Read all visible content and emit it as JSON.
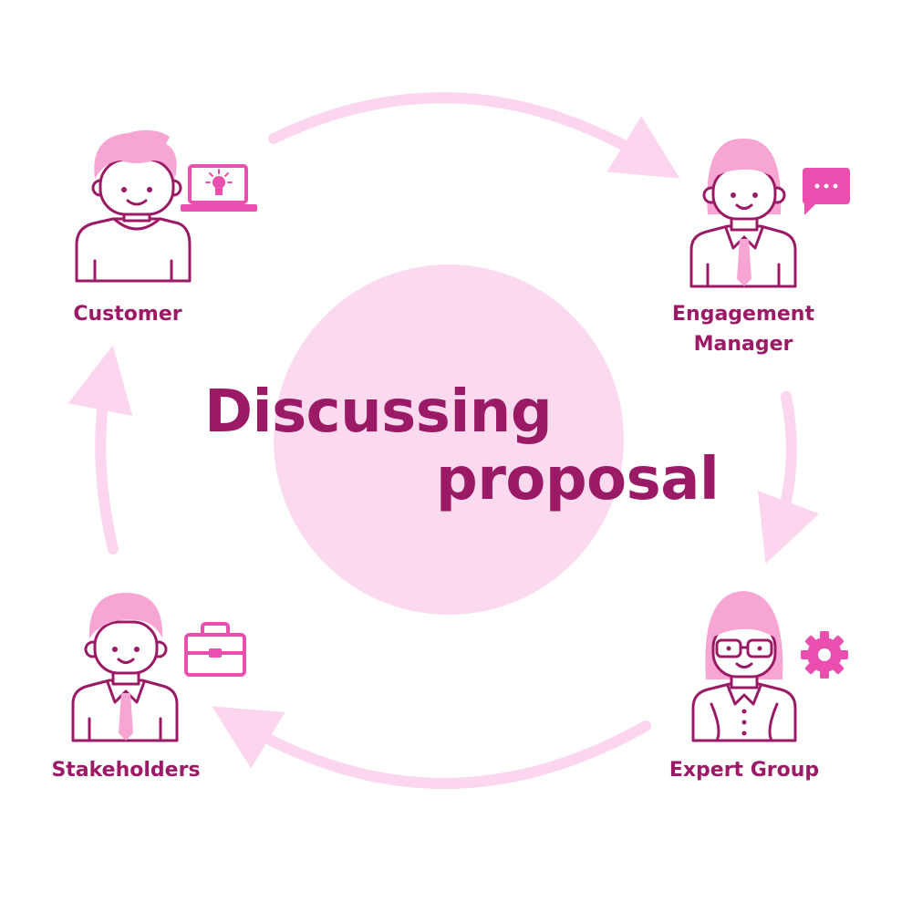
{
  "diagram": {
    "title_line1": "Discussing",
    "title_line2": "proposal",
    "nodes": [
      {
        "id": "customer",
        "label_lines": [
          "Customer"
        ],
        "icon": "laptop-lightbulb-icon"
      },
      {
        "id": "engagement-manager",
        "label_lines": [
          "Engagement",
          "Manager"
        ],
        "icon": "chat-bubble-icon"
      },
      {
        "id": "expert-group",
        "label_lines": [
          "Expert Group"
        ],
        "icon": "gear-icon"
      },
      {
        "id": "stakeholders",
        "label_lines": [
          "Stakeholders"
        ],
        "icon": "briefcase-icon"
      }
    ],
    "flow_direction": "clockwise"
  },
  "colors": {
    "text": "#9b1a66",
    "stroke": "#9b1a66",
    "accent": "#ea4fb0",
    "hair": "#f7a6d4",
    "circle": "#fbdaf0",
    "arrow": "#fbd6ee",
    "background": "#ffffff"
  }
}
